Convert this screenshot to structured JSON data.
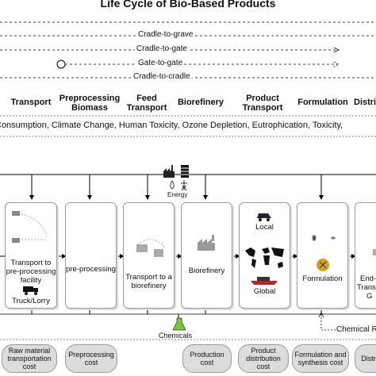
{
  "title": "Life Cycle of Bio-Based Products",
  "scopes": {
    "cradle_to_grave": "Cradle-to-grave",
    "cradle_to_gate": "Cradle-to-gate",
    "gate_to_gate": "Gate-to-gate",
    "cradle_to_cradle": "Cradle-to-cradle"
  },
  "stages": [
    "Transport",
    "Preprocessing Biomass",
    "Feed Transport",
    "Biorefinery",
    "Product Transport",
    "Formulation",
    "Distri"
  ],
  "impacts": "Consumption,  Climate Change,   Human Toxicity, Ozone Depletion,   Eutrophication,  Toxicity,",
  "energy_label": "Energy",
  "boxes": {
    "transport_to_preprocessing": "Transport to pre-processing facility",
    "truck_lorry": "Truck/Lorry",
    "preprocessing": "pre-processing",
    "transport_to_biorefinery": "Transport to a biorefinery",
    "biorefinery": "Biorefinery",
    "local": "Local",
    "global": "Global",
    "formulation": "Formulation",
    "end_fragment": "End-",
    "transport_fragment": "Transp",
    "g_fragment": "G"
  },
  "chemicals_label": "Chemicals",
  "chemical_recycle_label": "Chemical R",
  "costs": [
    "Raw material transportation cost",
    "Preprocessing cost",
    "Production cost",
    "Product distribution cost",
    "Formulation and synthesis cost",
    "Distrib"
  ]
}
